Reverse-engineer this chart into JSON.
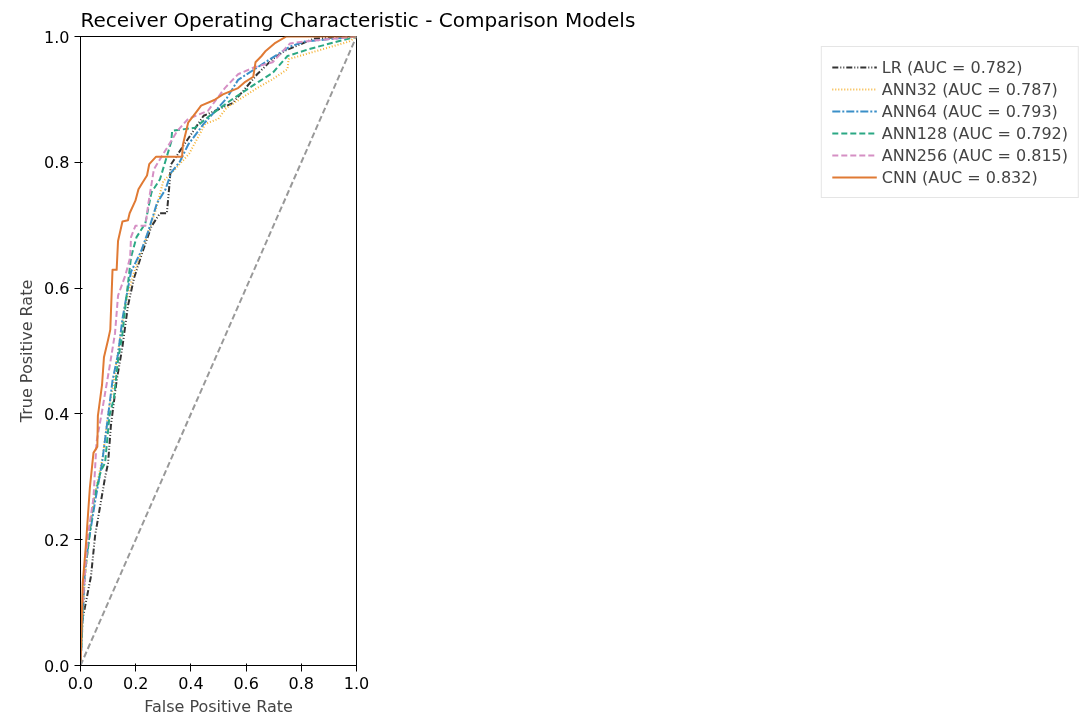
{
  "chart_data": {
    "type": "line",
    "title": "Receiver Operating Characteristic - Comparison Models",
    "xlabel": "False Positive Rate",
    "ylabel": "True Positive Rate",
    "xlim": [
      0,
      1
    ],
    "ylim": [
      0,
      1
    ],
    "xticks": [
      {
        "value": 0,
        "label": "0.0"
      },
      {
        "value": 0.2,
        "label": "0.2"
      },
      {
        "value": 0.4,
        "label": "0.4"
      },
      {
        "value": 0.6,
        "label": "0.6"
      },
      {
        "value": 0.8,
        "label": "0.8"
      },
      {
        "value": 1,
        "label": "1.0"
      }
    ],
    "yticks": [
      {
        "value": 0,
        "label": "0.0"
      },
      {
        "value": 0.2,
        "label": "0.2"
      },
      {
        "value": 0.4,
        "label": "0.4"
      },
      {
        "value": 0.6,
        "label": "0.6"
      },
      {
        "value": 0.8,
        "label": "0.8"
      },
      {
        "value": 1,
        "label": "1.0"
      }
    ],
    "grid": false,
    "legend": "right",
    "marker": "none",
    "series": [
      {
        "name": "LR (AUC = 0.782)",
        "color": "#333333",
        "line_style": "dashdotdot",
        "x": [
          0,
          0.006,
          0.038,
          0.053,
          0.089,
          0.1,
          0.11,
          0.131,
          0.152,
          0.172,
          0.194,
          0.225,
          0.257,
          0.288,
          0.313,
          0.324,
          0.327,
          0.383,
          0.446,
          0.551,
          0.602,
          0.64,
          0.696,
          0.739,
          0.848,
          1
        ],
        "values": [
          0,
          0.07,
          0.142,
          0.207,
          0.299,
          0.322,
          0.381,
          0.453,
          0.507,
          0.572,
          0.616,
          0.658,
          0.698,
          0.719,
          0.719,
          0.773,
          0.796,
          0.833,
          0.874,
          0.894,
          0.92,
          0.94,
          0.964,
          0.977,
          0.997,
          1
        ]
      },
      {
        "name": "ANN32 (AUC = 0.787)",
        "color": "#f5b335",
        "line_style": "dotted",
        "x": [
          0,
          0.016,
          0.04,
          0.06,
          0.08,
          0.1,
          0.12,
          0.14,
          0.16,
          0.19,
          0.23,
          0.27,
          0.3,
          0.343,
          0.394,
          0.452,
          0.499,
          0.53,
          0.64,
          0.692,
          0.75,
          0.754,
          0.973,
          1
        ],
        "values": [
          0,
          0.14,
          0.24,
          0.29,
          0.33,
          0.4,
          0.45,
          0.51,
          0.57,
          0.62,
          0.67,
          0.72,
          0.77,
          0.789,
          0.814,
          0.861,
          0.869,
          0.887,
          0.918,
          0.931,
          0.948,
          0.964,
          0.992,
          1
        ]
      },
      {
        "name": "ANN64 (AUC = 0.793)",
        "color": "#3a8fc8",
        "line_style": "dashdot",
        "x": [
          0,
          0.016,
          0.031,
          0.053,
          0.078,
          0.094,
          0.116,
          0.136,
          0.152,
          0.167,
          0.183,
          0.219,
          0.246,
          0.277,
          0.308,
          0.329,
          0.36,
          0.39,
          0.446,
          0.53,
          0.571,
          0.687,
          0.759,
          0.812,
          1
        ],
        "values": [
          0,
          0.152,
          0.201,
          0.261,
          0.322,
          0.376,
          0.453,
          0.495,
          0.551,
          0.588,
          0.626,
          0.658,
          0.691,
          0.735,
          0.757,
          0.784,
          0.801,
          0.828,
          0.861,
          0.902,
          0.931,
          0.964,
          0.984,
          0.992,
          1
        ]
      },
      {
        "name": "ANN128 (AUC = 0.792)",
        "color": "#2ba884",
        "line_style": "dashed",
        "x": [
          0,
          0.011,
          0.047,
          0.074,
          0.089,
          0.105,
          0.121,
          0.136,
          0.152,
          0.167,
          0.183,
          0.203,
          0.235,
          0.257,
          0.288,
          0.329,
          0.332,
          0.415,
          0.468,
          0.546,
          0.645,
          0.696,
          0.75,
          0.828,
          0.931,
          1
        ],
        "values": [
          0,
          0.126,
          0.261,
          0.31,
          0.322,
          0.397,
          0.425,
          0.485,
          0.528,
          0.588,
          0.649,
          0.681,
          0.703,
          0.752,
          0.773,
          0.833,
          0.85,
          0.855,
          0.874,
          0.899,
          0.928,
          0.942,
          0.969,
          0.98,
          0.992,
          1
        ]
      },
      {
        "name": "ANN256 (AUC = 0.815)",
        "color": "#d58fc4",
        "line_style": "dashed",
        "x": [
          0,
          0.003,
          0.027,
          0.047,
          0.058,
          0.078,
          0.105,
          0.125,
          0.136,
          0.163,
          0.18,
          0.183,
          0.199,
          0.235,
          0.246,
          0.266,
          0.351,
          0.39,
          0.462,
          0.523,
          0.571,
          0.629,
          0.696,
          0.759,
          0.812,
          1
        ],
        "values": [
          0,
          0.07,
          0.207,
          0.266,
          0.355,
          0.404,
          0.474,
          0.528,
          0.588,
          0.621,
          0.649,
          0.681,
          0.699,
          0.699,
          0.735,
          0.789,
          0.85,
          0.869,
          0.882,
          0.918,
          0.94,
          0.951,
          0.959,
          0.989,
          0.992,
          1
        ]
      },
      {
        "name": "CNN (AUC = 0.832)",
        "color": "#e07a34",
        "line_style": "solid",
        "x": [
          0,
          0.008,
          0.019,
          0.034,
          0.047,
          0.061,
          0.063,
          0.078,
          0.085,
          0.1,
          0.108,
          0.116,
          0.131,
          0.136,
          0.152,
          0.172,
          0.178,
          0.199,
          0.21,
          0.225,
          0.241,
          0.249,
          0.274,
          0.368,
          0.371,
          0.39,
          0.418,
          0.437,
          0.485,
          0.516,
          0.571,
          0.597,
          0.626,
          0.634,
          0.656,
          0.671,
          0.703,
          0.746,
          1
        ],
        "values": [
          0,
          0.131,
          0.188,
          0.283,
          0.338,
          0.348,
          0.397,
          0.446,
          0.49,
          0.518,
          0.534,
          0.629,
          0.629,
          0.675,
          0.706,
          0.708,
          0.719,
          0.739,
          0.757,
          0.768,
          0.779,
          0.797,
          0.809,
          0.809,
          0.828,
          0.863,
          0.879,
          0.89,
          0.899,
          0.908,
          0.918,
          0.928,
          0.936,
          0.959,
          0.969,
          0.977,
          0.989,
          1,
          1
        ]
      },
      {
        "color": "#999999",
        "line_style": "dashed",
        "x": [
          0,
          1
        ],
        "values": [
          0,
          1
        ]
      }
    ]
  }
}
